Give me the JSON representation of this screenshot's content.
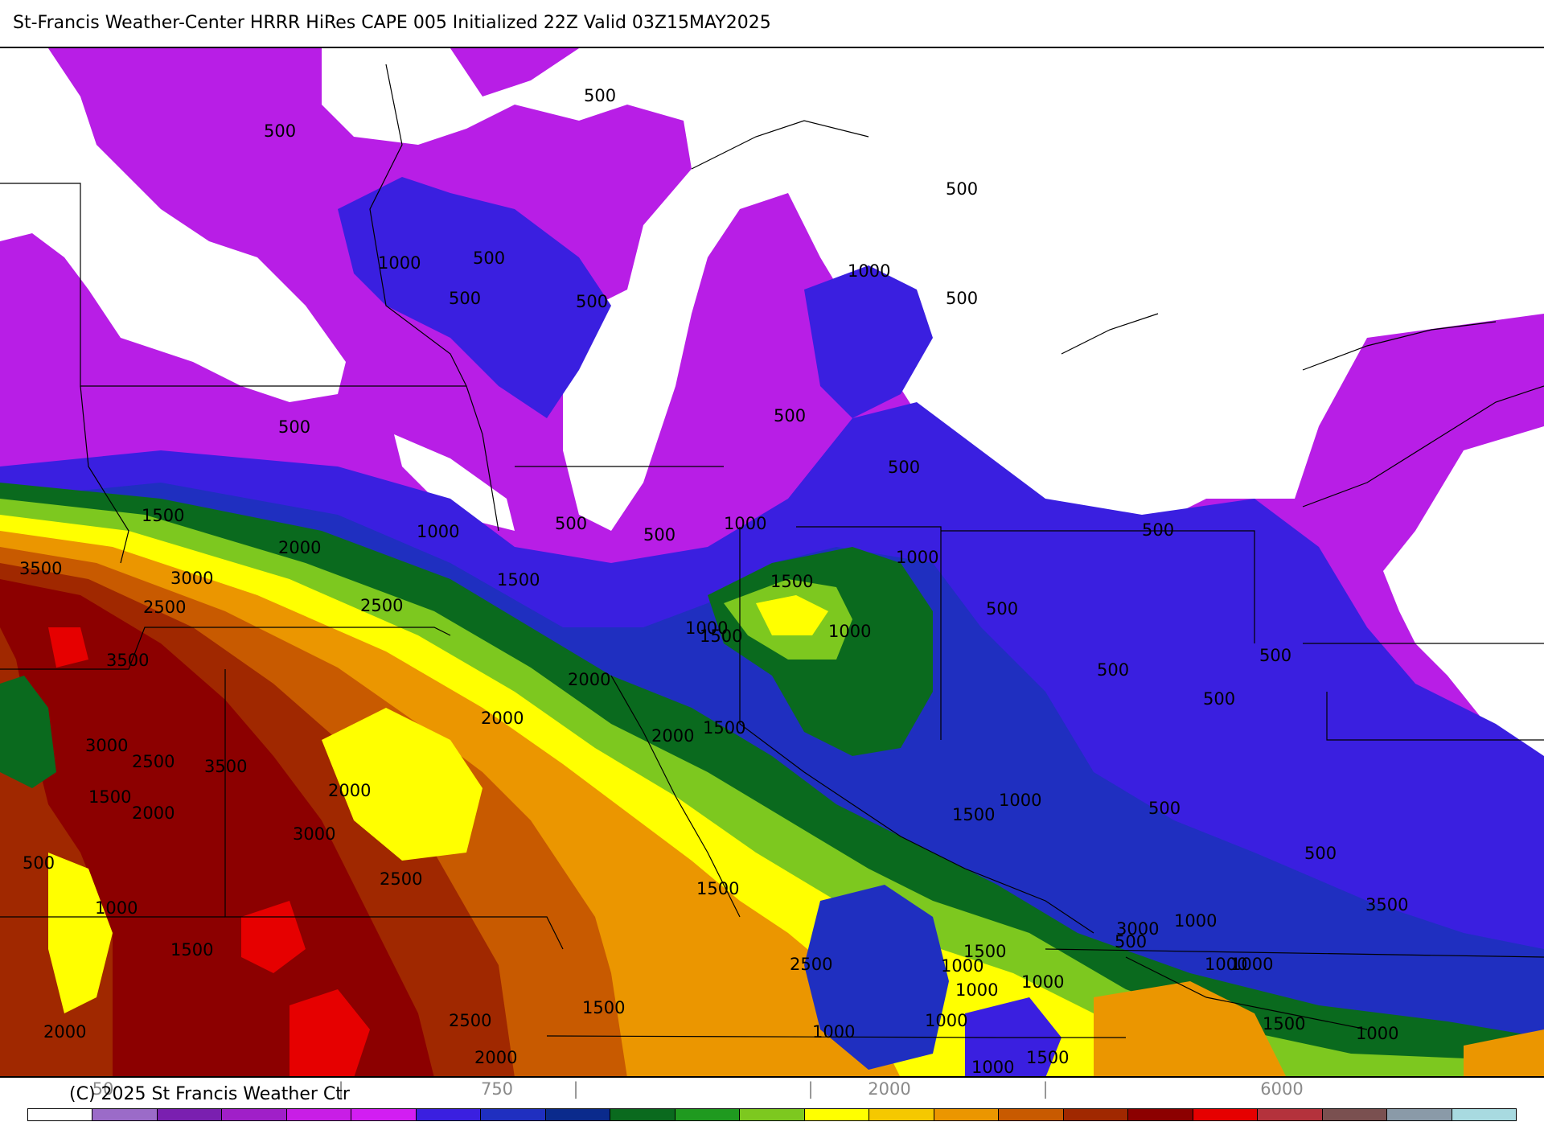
{
  "title": "St-Francis Weather-Center HRRR HiRes CAPE  005 Initialized  22Z Valid 03Z15MAY2025",
  "copyright": "(C) 2025 St Francis Weather Ctr",
  "units_note": "",
  "colorbar": {
    "colors": [
      "#ffffff",
      "#9b6bc8",
      "#7a1fb0",
      "#a01fc8",
      "#c81ee6",
      "#d21ef2",
      "#3a1fe0",
      "#1f2fc0",
      "#0a2a8c",
      "#0a6a1e",
      "#1f9a1f",
      "#7dc81f",
      "#ffff00",
      "#f5c800",
      "#eb9600",
      "#c85a00",
      "#a02800",
      "#8c0000",
      "#e60000",
      "#b4323c",
      "#7a5050",
      "#8a9aa8",
      "#a8dae0"
    ],
    "tick_labels": [
      "50",
      "|",
      "750",
      "|",
      "|",
      "2000",
      "|",
      "6000"
    ]
  },
  "contour_labels": [
    "500",
    "500",
    "1000",
    "500",
    "500",
    "500",
    "500",
    "500",
    "1000",
    "500",
    "500",
    "1000",
    "500",
    "500",
    "1000",
    "500",
    "1500",
    "2000",
    "1000",
    "500",
    "500",
    "1000",
    "1500",
    "3000",
    "3500",
    "2500",
    "2500",
    "1500",
    "1500",
    "1000",
    "3500",
    "2000",
    "2000",
    "2000",
    "1500",
    "500",
    "500",
    "500",
    "3000",
    "2500",
    "3500",
    "2000",
    "1500",
    "1000",
    "500",
    "1500",
    "2000",
    "3000",
    "500",
    "500",
    "2500",
    "1500",
    "1000",
    "1000",
    "3000",
    "3500",
    "2500",
    "500",
    "1000",
    "1500",
    "1000",
    "1000",
    "1500",
    "1000",
    "1500",
    "2500",
    "2000",
    "1000",
    "1000",
    "1500",
    "2000",
    "1500",
    "1000",
    "1000",
    "1000"
  ]
}
